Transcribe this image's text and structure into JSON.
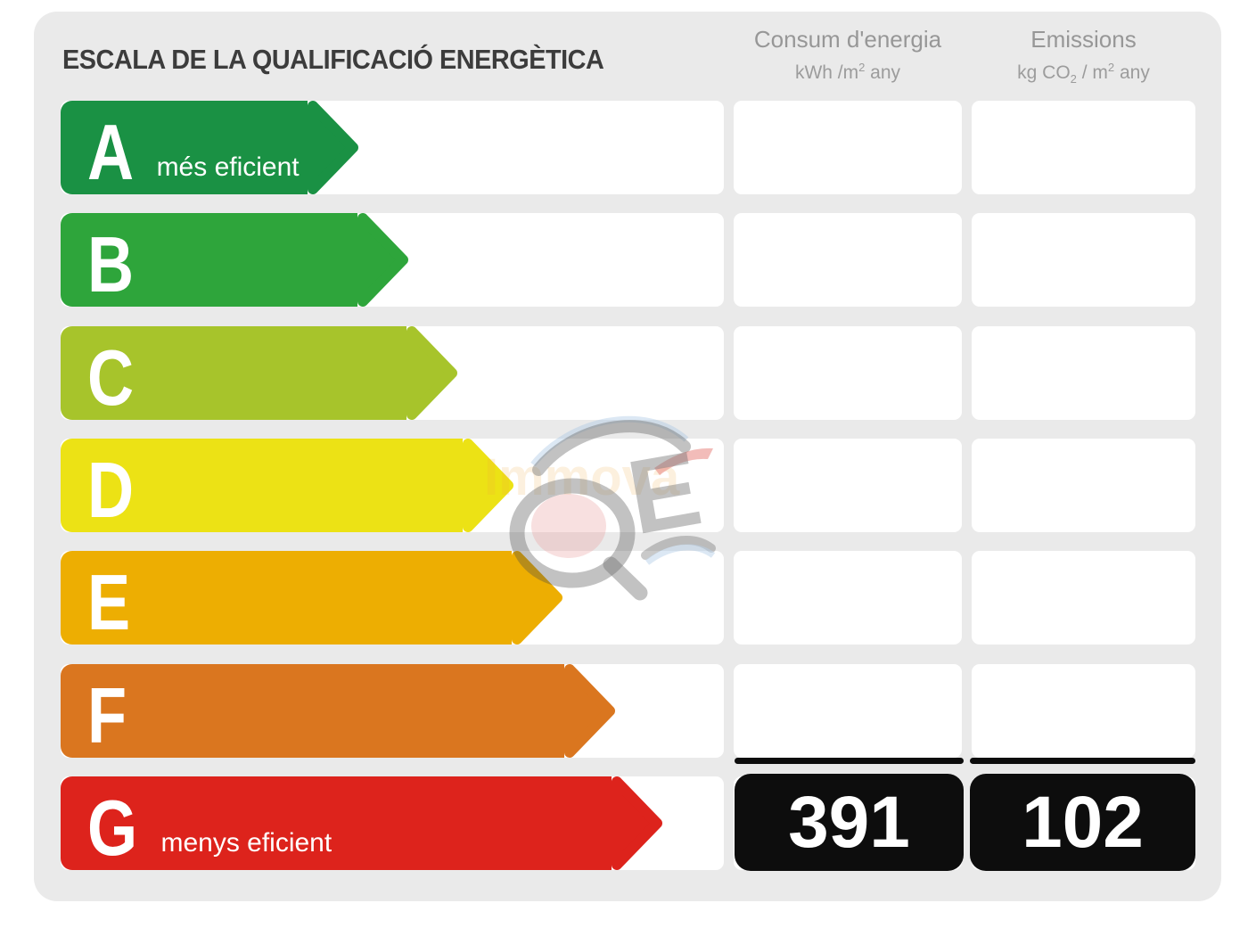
{
  "title": "ESCALA DE LA QUALIFICACIÓ ENERGÈTICA",
  "header": {
    "consum": {
      "title": "Consum d'energia",
      "unit_pre": "kWh /m",
      "unit_sup": "2",
      "unit_post": "  any"
    },
    "emissions": {
      "title": "Emissions",
      "unit_pre": "kg CO",
      "unit_sub": "2",
      "unit_mid": " / m",
      "unit_sup": "2",
      "unit_post": "  any"
    }
  },
  "scale": [
    {
      "grade": "A",
      "note": "més eficient",
      "color": "#1A9144",
      "arrow_width": 334,
      "show_values": false
    },
    {
      "grade": "B",
      "note": "",
      "color": "#2EA53B",
      "arrow_width": 390,
      "show_values": false
    },
    {
      "grade": "C",
      "note": "",
      "color": "#A7C42B",
      "arrow_width": 445,
      "show_values": false
    },
    {
      "grade": "D",
      "note": "",
      "color": "#ECE215",
      "arrow_width": 508,
      "show_values": false
    },
    {
      "grade": "E",
      "note": "",
      "color": "#EDAE02",
      "arrow_width": 563,
      "show_values": false
    },
    {
      "grade": "F",
      "note": "",
      "color": "#DA761F",
      "arrow_width": 622,
      "show_values": false
    },
    {
      "grade": "G",
      "note": "menys eficient",
      "color": "#DD231C",
      "arrow_width": 675,
      "show_values": true
    }
  ],
  "values": {
    "consum": "391",
    "emissions": "102"
  },
  "watermark": {
    "text": "Immova",
    "logo_text": "E"
  },
  "colors": {
    "panel_bg": "#EAEAEA",
    "cell_bg": "#FFFFFF",
    "value_box_bg": "#0D0D0D",
    "title_text": "#3C3C3C",
    "header_text": "#979797"
  },
  "chart_data": {
    "type": "bar",
    "title": "ESCALA DE LA QUALIFICACIÓ ENERGÈTICA",
    "categories": [
      "A",
      "B",
      "C",
      "D",
      "E",
      "F",
      "G"
    ],
    "series": [
      {
        "name": "Consum d'energia (kWh/m2 any)",
        "values": [
          null,
          null,
          null,
          null,
          null,
          null,
          391
        ]
      },
      {
        "name": "Emissions (kg CO2/m2 any)",
        "values": [
          null,
          null,
          null,
          null,
          null,
          null,
          102
        ]
      }
    ],
    "annotations": [
      "A més eficient",
      "G menys eficient"
    ],
    "rating": "G",
    "legend_position": "top",
    "grid": false
  }
}
